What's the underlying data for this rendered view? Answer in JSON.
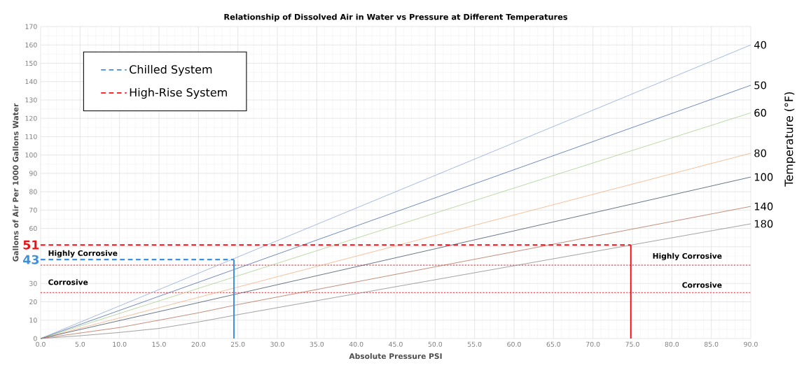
{
  "chart_data": {
    "type": "line",
    "title": "Relationship of Dissolved Air in Water vs Pressure at Different Temperatures",
    "xlabel": "Absolute Pressure PSI",
    "ylabel": "Gallons of Air Per 1000 Gallons Water",
    "y2label": "Temperature (°F)",
    "xlim": [
      0,
      90
    ],
    "ylim": [
      0,
      170
    ],
    "xticks": [
      {
        "value": 0,
        "label": "0.0"
      },
      {
        "value": 5,
        "label": "5.0"
      },
      {
        "value": 10,
        "label": "10.0"
      },
      {
        "value": 15,
        "label": "15.0"
      },
      {
        "value": 20,
        "label": "20.0"
      },
      {
        "value": 25,
        "label": "25.0"
      },
      {
        "value": 30,
        "label": "30.0"
      },
      {
        "value": 35,
        "label": "35.0"
      },
      {
        "value": 40,
        "label": "40.0"
      },
      {
        "value": 45,
        "label": "45.0"
      },
      {
        "value": 50,
        "label": "50.0"
      },
      {
        "value": 55,
        "label": "55.0"
      },
      {
        "value": 60,
        "label": "60.0"
      },
      {
        "value": 65,
        "label": "65.0"
      },
      {
        "value": 70,
        "label": "70.0"
      },
      {
        "value": 75,
        "label": "75.0"
      },
      {
        "value": 80,
        "label": "80.0"
      },
      {
        "value": 85,
        "label": "85.0"
      },
      {
        "value": 90,
        "label": "90.0"
      }
    ],
    "yticks": [
      0,
      10,
      20,
      30,
      {
        "value": 40,
        "label": null
      },
      {
        "value": 50,
        "label": null
      },
      60,
      70,
      80,
      90,
      100,
      110,
      120,
      130,
      140,
      150,
      160,
      170
    ],
    "grid": true,
    "legend": "top left",
    "series": [
      {
        "name": "40",
        "color": "#8faadc",
        "line_style": "solid",
        "x": [
          0,
          90
        ],
        "values": [
          0,
          160
        ]
      },
      {
        "name": "50",
        "color": "#4a6fb0",
        "line_style": "solid",
        "x": [
          0,
          90
        ],
        "values": [
          0,
          138
        ]
      },
      {
        "name": "60",
        "color": "#a9d18e",
        "line_style": "solid",
        "x": [
          0,
          90
        ],
        "values": [
          0,
          123
        ]
      },
      {
        "name": "80",
        "color": "#f4b183",
        "line_style": "solid",
        "x": [
          0,
          90
        ],
        "values": [
          0,
          101
        ]
      },
      {
        "name": "100",
        "color": "#44546a",
        "line_style": "solid",
        "x": [
          0,
          90
        ],
        "values": [
          0,
          88
        ]
      },
      {
        "name": "140",
        "color": "#b4735a",
        "line_style": "solid",
        "x": [
          0,
          10,
          20,
          25,
          90
        ],
        "values": [
          0,
          6,
          14,
          18.5,
          72
        ]
      },
      {
        "name": "180",
        "color": "#8c8c8c",
        "line_style": "solid",
        "x": [
          0,
          5,
          10,
          15,
          20,
          25,
          90
        ],
        "values": [
          0,
          1.5,
          3.3,
          5.5,
          9,
          13,
          62.5
        ]
      },
      {
        "name": "Chilled System",
        "color": "#3d8fe0",
        "line_style": "dashed",
        "x": [
          0,
          24.5
        ],
        "values": [
          43,
          43
        ],
        "value_labels": [
          "43",
          null
        ]
      },
      {
        "color": "#3d8fe0",
        "line_style": "solid",
        "x": [
          24.5,
          24.5
        ],
        "values": [
          0,
          43
        ]
      },
      {
        "name": "High-Rise System",
        "color": "#e8141c",
        "line_style": "dashed",
        "x": [
          0,
          74.8
        ],
        "values": [
          51,
          51
        ],
        "value_labels": [
          "51",
          null
        ]
      },
      {
        "color": "#e8141c",
        "line_style": "solid",
        "x": [
          74.8,
          74.8
        ],
        "values": [
          0,
          51
        ]
      }
    ],
    "ref_lines": [
      {
        "axis": "y",
        "value": 40,
        "label": "Highly Corrosive",
        "color": "#e8505a",
        "line_style": "dotted"
      },
      {
        "axis": "y",
        "value": 25,
        "label": "Corrosive",
        "color": "#e8505a",
        "line_style": "dotted"
      }
    ]
  }
}
